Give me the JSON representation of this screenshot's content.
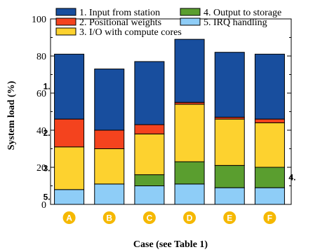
{
  "chart_data": {
    "type": "bar",
    "stacked": true,
    "categories": [
      "A",
      "B",
      "C",
      "D",
      "E",
      "F"
    ],
    "xlabel": "Case (see Table 1)",
    "ylabel": "System load (%)",
    "ylim": [
      0,
      100
    ],
    "yticks": [
      0,
      20,
      40,
      60,
      80,
      100
    ],
    "legend_position": "top",
    "series": [
      {
        "name": "5. IRQ handling",
        "short": "5.",
        "color": "#8ecdf7",
        "values": [
          8,
          11,
          10,
          11,
          9,
          9
        ]
      },
      {
        "name": "4. Output to storage",
        "short": "4.",
        "color": "#5a9e2f",
        "values": [
          0,
          0,
          6,
          12,
          12,
          11
        ]
      },
      {
        "name": "3. I/O with compute cores",
        "short": "3.",
        "color": "#fdd22f",
        "values": [
          23,
          19,
          22,
          31,
          25,
          24
        ]
      },
      {
        "name": "2. Positional weights",
        "short": "2.",
        "color": "#f4431e",
        "values": [
          15,
          10,
          5,
          1,
          1,
          2
        ]
      },
      {
        "name": "1. Input from station",
        "short": "1.",
        "color": "#184e9e",
        "values": [
          35,
          33,
          34,
          34,
          35,
          35
        ]
      }
    ],
    "legend_order": [
      "1. Input from station",
      "4. Output to storage",
      "2. Positional weights",
      "5. IRQ handling",
      "3. I/O with compute cores"
    ],
    "annotations": [
      {
        "text": "1.",
        "bar": "A",
        "series": "1. Input from station",
        "side": "left"
      },
      {
        "text": "2.",
        "bar": "A",
        "series": "2. Positional weights",
        "side": "left"
      },
      {
        "text": "3.",
        "bar": "A",
        "series": "3. I/O with compute cores",
        "side": "left"
      },
      {
        "text": "5.",
        "bar": "A",
        "series": "5. IRQ handling",
        "side": "left"
      },
      {
        "text": "4.",
        "bar": "F",
        "series": "4. Output to storage",
        "side": "right"
      }
    ],
    "category_badge_color": "#f5b800",
    "category_badge_text_color": "#ffffff"
  }
}
